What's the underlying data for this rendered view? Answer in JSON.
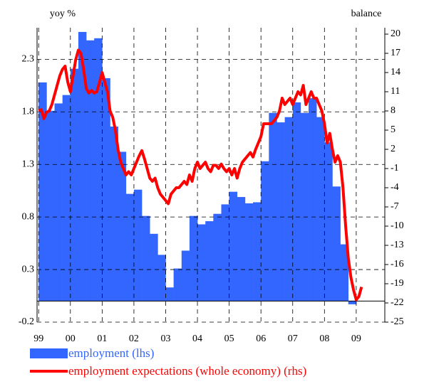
{
  "chart_data": {
    "type": "combo",
    "y_label": "yoy %",
    "y2_label": "balance",
    "xlim": [
      1998.95,
      2009.9
    ],
    "xticks": [
      {
        "value": 1999,
        "label": "99"
      },
      {
        "value": 2000,
        "label": "00"
      },
      {
        "value": 2001,
        "label": "01"
      },
      {
        "value": 2002,
        "label": "02"
      },
      {
        "value": 2003,
        "label": "03"
      },
      {
        "value": 2004,
        "label": "04"
      },
      {
        "value": 2005,
        "label": "05"
      },
      {
        "value": 2006,
        "label": "06"
      },
      {
        "value": 2007,
        "label": "07"
      },
      {
        "value": 2008,
        "label": "08"
      },
      {
        "value": 2009,
        "label": "09"
      }
    ],
    "ylim": [
      -0.2,
      2.6
    ],
    "yticks": [
      -0.2,
      0.3,
      0.8,
      1.3,
      1.8,
      2.3
    ],
    "y2lim": [
      -25,
      21
    ],
    "y2ticks": [
      20,
      17,
      14,
      11,
      8,
      5,
      2,
      -1,
      -4,
      -7,
      -10,
      -13,
      -16,
      -19,
      -22,
      -25
    ],
    "grid": true,
    "series": [
      {
        "name": "employment (lhs)",
        "type": "bar",
        "color": "#3366ff",
        "x": [
          1999.125,
          1999.375,
          1999.625,
          1999.875,
          2000.125,
          2000.375,
          2000.625,
          2000.875,
          2001.125,
          2001.375,
          2001.625,
          2001.875,
          2002.125,
          2002.375,
          2002.625,
          2002.875,
          2003.125,
          2003.375,
          2003.625,
          2003.875,
          2004.125,
          2004.375,
          2004.625,
          2004.875,
          2005.125,
          2005.375,
          2005.625,
          2005.875,
          2006.125,
          2006.375,
          2006.625,
          2006.875,
          2007.125,
          2007.375,
          2007.625,
          2007.875,
          2008.125,
          2008.375,
          2008.625,
          2008.875
        ],
        "values": [
          2.08,
          1.81,
          1.88,
          1.96,
          2.21,
          2.56,
          2.48,
          2.5,
          2.12,
          1.66,
          1.42,
          1.02,
          1.06,
          0.81,
          0.64,
          0.44,
          0.13,
          0.31,
          0.48,
          0.81,
          0.73,
          0.76,
          0.83,
          0.92,
          1.04,
          0.99,
          0.93,
          0.94,
          1.33,
          1.79,
          1.7,
          1.75,
          1.89,
          1.79,
          1.93,
          1.75,
          1.51,
          1.09,
          0.54,
          -0.03
        ]
      },
      {
        "name": "employment expectations (whole economy) (rhs)",
        "type": "line",
        "color": "#ff0000",
        "axis": "y2",
        "x": [
          1999.0,
          1999.083,
          1999.167,
          1999.25,
          1999.333,
          1999.417,
          1999.5,
          1999.583,
          1999.667,
          1999.75,
          1999.833,
          1999.917,
          2000.0,
          2000.083,
          2000.167,
          2000.25,
          2000.333,
          2000.417,
          2000.5,
          2000.583,
          2000.667,
          2000.75,
          2000.833,
          2000.917,
          2001.0,
          2001.083,
          2001.167,
          2001.25,
          2001.333,
          2001.417,
          2001.5,
          2001.583,
          2001.667,
          2001.75,
          2001.833,
          2001.917,
          2002.0,
          2002.083,
          2002.167,
          2002.25,
          2002.333,
          2002.417,
          2002.5,
          2002.583,
          2002.667,
          2002.75,
          2002.833,
          2002.917,
          2003.0,
          2003.083,
          2003.167,
          2003.25,
          2003.333,
          2003.417,
          2003.5,
          2003.583,
          2003.667,
          2003.75,
          2003.833,
          2003.917,
          2004.0,
          2004.083,
          2004.167,
          2004.25,
          2004.333,
          2004.417,
          2004.5,
          2004.583,
          2004.667,
          2004.75,
          2004.833,
          2004.917,
          2005.0,
          2005.083,
          2005.167,
          2005.25,
          2005.333,
          2005.417,
          2005.5,
          2005.583,
          2005.667,
          2005.75,
          2005.833,
          2005.917,
          2006.0,
          2006.083,
          2006.167,
          2006.25,
          2006.333,
          2006.417,
          2006.5,
          2006.583,
          2006.667,
          2006.75,
          2006.833,
          2006.917,
          2007.0,
          2007.083,
          2007.167,
          2007.25,
          2007.333,
          2007.417,
          2007.5,
          2007.583,
          2007.667,
          2007.75,
          2007.833,
          2007.917,
          2008.0,
          2008.083,
          2008.167,
          2008.25,
          2008.333,
          2008.417,
          2008.5,
          2008.583,
          2008.667,
          2008.75,
          2008.833,
          2008.917,
          2009.0,
          2009.083,
          2009.167
        ],
        "values": [
          8,
          8.2,
          6.8,
          7.8,
          8,
          9,
          10.5,
          12,
          13.5,
          14.5,
          15,
          12.5,
          11,
          13.5,
          16,
          17.5,
          17,
          14.5,
          11.5,
          10.8,
          11.2,
          10.8,
          11,
          12.5,
          14,
          12.5,
          11,
          8,
          7,
          5,
          2,
          0,
          -1,
          -2,
          -1.5,
          -2,
          -1,
          0,
          1,
          1.8,
          0.5,
          -1,
          -2.5,
          -3,
          -2.5,
          -4,
          -5,
          -5.5,
          -6,
          -6.5,
          -5,
          -4.5,
          -4,
          -4,
          -3.5,
          -3,
          -3.5,
          -2,
          -3,
          -1,
          0,
          -1,
          -0.5,
          0,
          -1,
          -1.5,
          -0.5,
          -0.5,
          -1,
          -0.3,
          -1,
          -1.5,
          -1,
          -2,
          -1,
          -2.5,
          -1,
          0,
          0.5,
          1,
          1.5,
          0.8,
          2,
          3,
          4,
          6,
          6,
          6,
          6,
          6.5,
          7,
          8,
          10,
          9,
          9.5,
          10,
          9,
          10,
          11,
          10.5,
          12,
          9,
          10,
          11,
          10,
          10,
          9,
          8,
          6,
          3,
          4.5,
          2,
          0,
          1,
          0,
          -4,
          -10,
          -15,
          -18,
          -20,
          -21.5,
          -21,
          -19.5
        ]
      }
    ]
  }
}
